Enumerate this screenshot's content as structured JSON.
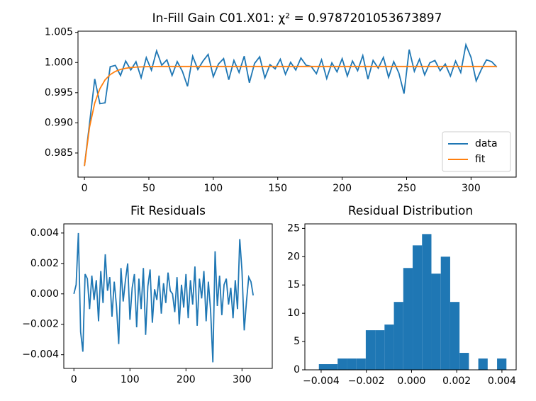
{
  "chart_data": [
    {
      "type": "line",
      "title": "In-Fill Gain C01.X01: χ² = 0.9787201053673897",
      "x": [
        0,
        4,
        8,
        12,
        16,
        20,
        24,
        28,
        32,
        36,
        40,
        44,
        48,
        52,
        56,
        60,
        64,
        68,
        72,
        76,
        80,
        84,
        88,
        92,
        96,
        100,
        104,
        108,
        112,
        116,
        120,
        124,
        128,
        132,
        136,
        140,
        144,
        148,
        152,
        156,
        160,
        164,
        168,
        172,
        176,
        180,
        184,
        188,
        192,
        196,
        200,
        204,
        208,
        212,
        216,
        220,
        224,
        228,
        232,
        236,
        240,
        244,
        248,
        252,
        256,
        260,
        264,
        268,
        272,
        276,
        280,
        284,
        288,
        292,
        296,
        300,
        304,
        308,
        312,
        316,
        320
      ],
      "series": [
        {
          "name": "data",
          "color": "#1f77b4",
          "values": [
            0.98285,
            0.98994,
            0.99728,
            0.99317,
            0.99332,
            0.9993,
            0.99953,
            0.99785,
            1.00025,
            0.99877,
            1.00014,
            0.99748,
            1.00081,
            0.99873,
            1.00194,
            0.99955,
            1.00045,
            0.99785,
            1.00015,
            0.99855,
            0.99605,
            1.00105,
            0.99885,
            1.00025,
            1.00135,
            0.99765,
            0.99975,
            1.00065,
            0.99715,
            1.00035,
            0.99835,
            1.00105,
            0.99665,
            0.99985,
            1.00095,
            0.99745,
            0.99965,
            0.99895,
            1.00055,
            0.99805,
            1.00005,
            0.99875,
            1.00075,
            0.99955,
            0.99935,
            0.99815,
            1.00045,
            0.99735,
            0.99995,
            0.99845,
            1.00065,
            0.99775,
            1.00025,
            0.99865,
            1.00115,
            0.99725,
            1.00035,
            0.99905,
            1.00085,
            0.99755,
            1.00015,
            0.99825,
            0.99485,
            1.00215,
            0.99855,
            1.00055,
            0.99795,
            0.99995,
            1.00035,
            0.99865,
            0.99975,
            0.99775,
            1.00025,
            0.99835,
            1.00295,
            1.00085,
            0.99695,
            0.99885,
            1.00045,
            1.00015,
            0.99925
          ]
        },
        {
          "name": "fit",
          "color": "#ff7f0e",
          "values": [
            0.98285,
            0.98934,
            0.99328,
            0.99567,
            0.99712,
            0.998,
            0.99853,
            0.99885,
            0.99905,
            0.99917,
            0.99924,
            0.99928,
            0.99931,
            0.99933,
            0.99934,
            0.99935,
            0.99935,
            0.99935,
            0.99935,
            0.99935,
            0.99935,
            0.99935,
            0.99935,
            0.99935,
            0.99935,
            0.99935,
            0.99935,
            0.99935,
            0.99935,
            0.99935,
            0.99935,
            0.99935,
            0.99935,
            0.99935,
            0.99935,
            0.99935,
            0.99935,
            0.99935,
            0.99935,
            0.99935,
            0.99935,
            0.99935,
            0.99935,
            0.99935,
            0.99935,
            0.99935,
            0.99935,
            0.99935,
            0.99935,
            0.99935,
            0.99935,
            0.99935,
            0.99935,
            0.99935,
            0.99935,
            0.99935,
            0.99935,
            0.99935,
            0.99935,
            0.99935,
            0.99935,
            0.99935,
            0.99935,
            0.99935,
            0.99935,
            0.99935,
            0.99935,
            0.99935,
            0.99935,
            0.99935,
            0.99935,
            0.99935,
            0.99935,
            0.99935,
            0.99935,
            0.99935,
            0.99935,
            0.99935,
            0.99935,
            0.99935,
            0.99935
          ]
        }
      ],
      "xlim": [
        -5,
        335
      ],
      "xticks": [
        0,
        50,
        100,
        150,
        200,
        250,
        300
      ],
      "ylim": [
        0.981,
        1.0052
      ],
      "yticks": [
        {
          "value": 0.985,
          "label": "0.985"
        },
        {
          "value": 0.99,
          "label": "0.990"
        },
        {
          "value": 0.995,
          "label": "0.995"
        },
        {
          "value": 1,
          "label": "1.000"
        },
        {
          "value": 1.005,
          "label": "1.005"
        }
      ],
      "legend": "lower right"
    },
    {
      "type": "line",
      "title": "Fit Residuals",
      "x": [
        0,
        4,
        8,
        12,
        16,
        20,
        24,
        28,
        32,
        36,
        40,
        44,
        48,
        52,
        56,
        60,
        64,
        68,
        72,
        76,
        80,
        84,
        88,
        92,
        96,
        100,
        104,
        108,
        112,
        116,
        120,
        124,
        128,
        132,
        136,
        140,
        144,
        148,
        152,
        156,
        160,
        164,
        168,
        172,
        176,
        180,
        184,
        188,
        192,
        196,
        200,
        204,
        208,
        212,
        216,
        220,
        224,
        228,
        232,
        236,
        240,
        244,
        248,
        252,
        256,
        260,
        264,
        268,
        272,
        276,
        280,
        284,
        288,
        292,
        296,
        300,
        304,
        308,
        312,
        316,
        320
      ],
      "series": [
        {
          "color": "#1f77b4",
          "values": [
            0,
            0.0006,
            0.004,
            -0.0025,
            -0.0038,
            0.0013,
            0.001,
            -0.001,
            0.0012,
            -0.0004,
            0.0009,
            -0.0018,
            0.0015,
            -0.0006,
            0.0026,
            0.0002,
            0.0011,
            -0.0015,
            0.0008,
            -0.0008,
            -0.0033,
            0.0017,
            -0.0005,
            0.0009,
            0.002,
            -0.0017,
            0.0004,
            0.0013,
            -0.0022,
            0.001,
            -0.001,
            0.0017,
            -0.0027,
            0.0005,
            0.0016,
            -0.0019,
            0.0003,
            -0.0004,
            0.0012,
            -0.0013,
            0.0007,
            -0.0006,
            0.0014,
            0.0002,
            0,
            -0.0012,
            0.0011,
            -0.002,
            0.0006,
            -0.0009,
            0.0013,
            -0.0016,
            0.0009,
            -0.0007,
            0.0018,
            -0.0021,
            0.001,
            -0.0003,
            0.0015,
            -0.0018,
            0.0008,
            -0.0011,
            -0.0045,
            0.0028,
            -0.0008,
            0.0012,
            -0.0014,
            0.0006,
            0.001,
            -0.0007,
            0.0004,
            -0.0016,
            0.0009,
            -0.001,
            0.0036,
            0.0015,
            -0.0024,
            -0.0005,
            0.0011,
            0.0008,
            -0.0001
          ]
        }
      ],
      "xlim": [
        -18,
        354
      ],
      "xticks": [
        0,
        100,
        200,
        300
      ],
      "ylim": [
        -0.0049,
        0.0046
      ],
      "yticks": [
        {
          "value": -0.004,
          "label": "−0.004"
        },
        {
          "value": -0.002,
          "label": "−0.002"
        },
        {
          "value": 0,
          "label": "0.000"
        },
        0.002,
        0.004
      ]
    },
    {
      "type": "histogram",
      "title": "Residual Distribution",
      "color": "#1f77b4",
      "bins": [
        -0.0041,
        -0.003685,
        -0.00327,
        -0.002855,
        -0.00244,
        -0.002025,
        -0.00161,
        -0.001195,
        -0.00078,
        -0.000365,
        5e-05,
        0.000465,
        0.00088,
        0.001295,
        0.00171,
        0.002125,
        0.00254,
        0.002955,
        0.00337,
        0.003785,
        0.0042
      ],
      "values": [
        1,
        1,
        2,
        2,
        2,
        7,
        7,
        8,
        12,
        18,
        22,
        24,
        17,
        20,
        12,
        3,
        0,
        2,
        0,
        2
      ],
      "xlim": [
        -0.00472,
        0.00463
      ],
      "xticks": [
        {
          "value": -0.004,
          "label": "−0.004"
        },
        {
          "value": -0.002,
          "label": "−0.002"
        },
        {
          "value": 0,
          "label": "0.000"
        },
        0.002,
        0.004
      ],
      "ylim": [
        0,
        25.8
      ],
      "yticks": [
        0,
        5,
        10,
        15,
        20,
        25
      ]
    }
  ]
}
